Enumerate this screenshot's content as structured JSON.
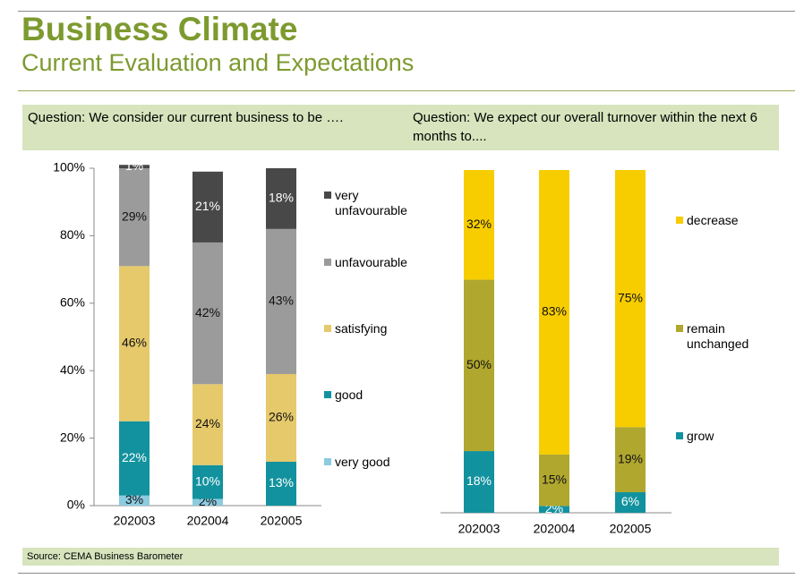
{
  "header": {
    "title": "Business Climate",
    "subtitle": "Current Evaluation and Expectations"
  },
  "source": "Source: CEMA Business Barometer",
  "chart_data": [
    {
      "type": "stacked_bar",
      "question": "Question: We consider our current business to be ….",
      "categories": [
        "202003",
        "202004",
        "202005"
      ],
      "ylim": [
        0,
        100
      ],
      "yticks": [
        {
          "value": 0,
          "label": "0%"
        },
        {
          "value": 20,
          "label": "20%"
        },
        {
          "value": 40,
          "label": "40%"
        },
        {
          "value": 60,
          "label": "60%"
        },
        {
          "value": 80,
          "label": "80%"
        },
        {
          "value": 100,
          "label": "100%"
        }
      ],
      "series": [
        {
          "name": "very good",
          "color": "#8ccbe0",
          "values": [
            3,
            2,
            0
          ],
          "value_labels": [
            "3%",
            "2%",
            null
          ]
        },
        {
          "name": "good",
          "color": "#12929e",
          "values": [
            22,
            10,
            13
          ],
          "value_labels": [
            "22%",
            "10%",
            "13%"
          ]
        },
        {
          "name": "satisfying",
          "color": "#e5c96b",
          "values": [
            46,
            24,
            26
          ],
          "value_labels": [
            "46%",
            "24%",
            "26%"
          ]
        },
        {
          "name": "unfavourable",
          "color": "#9b9b9b",
          "values": [
            29,
            42,
            43
          ],
          "value_labels": [
            "29%",
            "42%",
            "43%"
          ]
        },
        {
          "name": "very unfavourable",
          "color": "#484848",
          "values": [
            1,
            21,
            18
          ],
          "value_labels": [
            "1%",
            "21%",
            "18%"
          ]
        }
      ]
    },
    {
      "type": "stacked_bar",
      "question": "Question: We expect our overall turnover within the next 6 months to....",
      "categories": [
        "202003",
        "202004",
        "202005"
      ],
      "ylim": [
        0,
        100
      ],
      "series": [
        {
          "name": "grow",
          "color": "#12929e",
          "values": [
            18,
            2,
            6
          ],
          "value_labels": [
            "18%",
            "2%",
            "6%"
          ]
        },
        {
          "name": "remain unchanged",
          "color": "#b0a72f",
          "values": [
            50,
            15,
            19
          ],
          "value_labels": [
            "50%",
            "15%",
            "19%"
          ]
        },
        {
          "name": "decrease",
          "color": "#f7cd00",
          "values": [
            32,
            83,
            75
          ],
          "value_labels": [
            "32%",
            "83%",
            "75%"
          ]
        }
      ]
    }
  ]
}
